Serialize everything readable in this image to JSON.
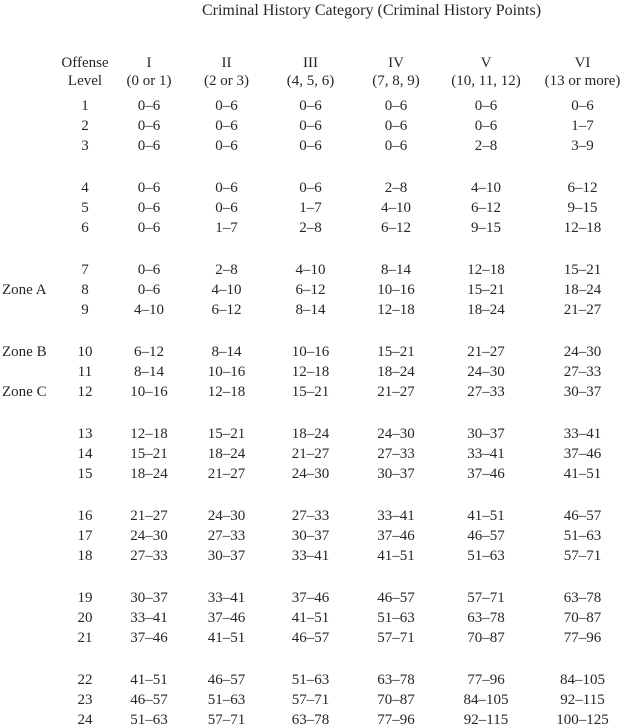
{
  "title": "Criminal History Category (Criminal History Points)",
  "table": {
    "row_header": {
      "line1": "Offense",
      "line2": "Level"
    },
    "columns": [
      {
        "numeral": "I",
        "points": "(0 or 1)"
      },
      {
        "numeral": "II",
        "points": "(2 or 3)"
      },
      {
        "numeral": "III",
        "points": "(4, 5, 6)"
      },
      {
        "numeral": "IV",
        "points": "(7, 8, 9)"
      },
      {
        "numeral": "V",
        "points": "(10, 11, 12)"
      },
      {
        "numeral": "VI",
        "points": "(13 or more)"
      }
    ],
    "rows": [
      {
        "zone": "",
        "level": "1",
        "ranges": [
          "0–6",
          "0–6",
          "0–6",
          "0–6",
          "0–6",
          "0–6"
        ]
      },
      {
        "zone": "",
        "level": "2",
        "ranges": [
          "0–6",
          "0–6",
          "0–6",
          "0–6",
          "0–6",
          "1–7"
        ]
      },
      {
        "zone": "",
        "level": "3",
        "ranges": [
          "0–6",
          "0–6",
          "0–6",
          "0–6",
          "2–8",
          "3–9"
        ]
      },
      {
        "zone": "",
        "level": "4",
        "ranges": [
          "0–6",
          "0–6",
          "0–6",
          "2–8",
          "4–10",
          "6–12"
        ]
      },
      {
        "zone": "",
        "level": "5",
        "ranges": [
          "0–6",
          "0–6",
          "1–7",
          "4–10",
          "6–12",
          "9–15"
        ]
      },
      {
        "zone": "",
        "level": "6",
        "ranges": [
          "0–6",
          "1–7",
          "2–8",
          "6–12",
          "9–15",
          "12–18"
        ]
      },
      {
        "zone": "",
        "level": "7",
        "ranges": [
          "0–6",
          "2–8",
          "4–10",
          "8–14",
          "12–18",
          "15–21"
        ]
      },
      {
        "zone": "Zone A",
        "level": "8",
        "ranges": [
          "0–6",
          "4–10",
          "6–12",
          "10–16",
          "15–21",
          "18–24"
        ]
      },
      {
        "zone": "",
        "level": "9",
        "ranges": [
          "4–10",
          "6–12",
          "8–14",
          "12–18",
          "18–24",
          "21–27"
        ]
      },
      {
        "zone": "Zone B",
        "level": "10",
        "ranges": [
          "6–12",
          "8–14",
          "10–16",
          "15–21",
          "21–27",
          "24–30"
        ]
      },
      {
        "zone": "",
        "level": "11",
        "ranges": [
          "8–14",
          "10–16",
          "12–18",
          "18–24",
          "24–30",
          "27–33"
        ]
      },
      {
        "zone": "Zone C",
        "level": "12",
        "ranges": [
          "10–16",
          "12–18",
          "15–21",
          "21–27",
          "27–33",
          "30–37"
        ]
      },
      {
        "zone": "",
        "level": "13",
        "ranges": [
          "12–18",
          "15–21",
          "18–24",
          "24–30",
          "30–37",
          "33–41"
        ]
      },
      {
        "zone": "",
        "level": "14",
        "ranges": [
          "15–21",
          "18–24",
          "21–27",
          "27–33",
          "33–41",
          "37–46"
        ]
      },
      {
        "zone": "",
        "level": "15",
        "ranges": [
          "18–24",
          "21–27",
          "24–30",
          "30–37",
          "37–46",
          "41–51"
        ]
      },
      {
        "zone": "",
        "level": "16",
        "ranges": [
          "21–27",
          "24–30",
          "27–33",
          "33–41",
          "41–51",
          "46–57"
        ]
      },
      {
        "zone": "",
        "level": "17",
        "ranges": [
          "24–30",
          "27–33",
          "30–37",
          "37–46",
          "46–57",
          "51–63"
        ]
      },
      {
        "zone": "",
        "level": "18",
        "ranges": [
          "27–33",
          "30–37",
          "33–41",
          "41–51",
          "51–63",
          "57–71"
        ]
      },
      {
        "zone": "",
        "level": "19",
        "ranges": [
          "30–37",
          "33–41",
          "37–46",
          "46–57",
          "57–71",
          "63–78"
        ]
      },
      {
        "zone": "",
        "level": "20",
        "ranges": [
          "33–41",
          "37–46",
          "41–51",
          "51–63",
          "63–78",
          "70–87"
        ]
      },
      {
        "zone": "",
        "level": "21",
        "ranges": [
          "37–46",
          "41–51",
          "46–57",
          "57–71",
          "70–87",
          "77–96"
        ]
      },
      {
        "zone": "",
        "level": "22",
        "ranges": [
          "41–51",
          "46–57",
          "51–63",
          "63–78",
          "77–96",
          "84–105"
        ]
      },
      {
        "zone": "",
        "level": "23",
        "ranges": [
          "46–57",
          "51–63",
          "57–71",
          "70–87",
          "84–105",
          "92–115"
        ]
      },
      {
        "zone": "",
        "level": "24",
        "ranges": [
          "51–63",
          "57–71",
          "63–78",
          "77–96",
          "92–115",
          "100–125"
        ]
      }
    ]
  }
}
